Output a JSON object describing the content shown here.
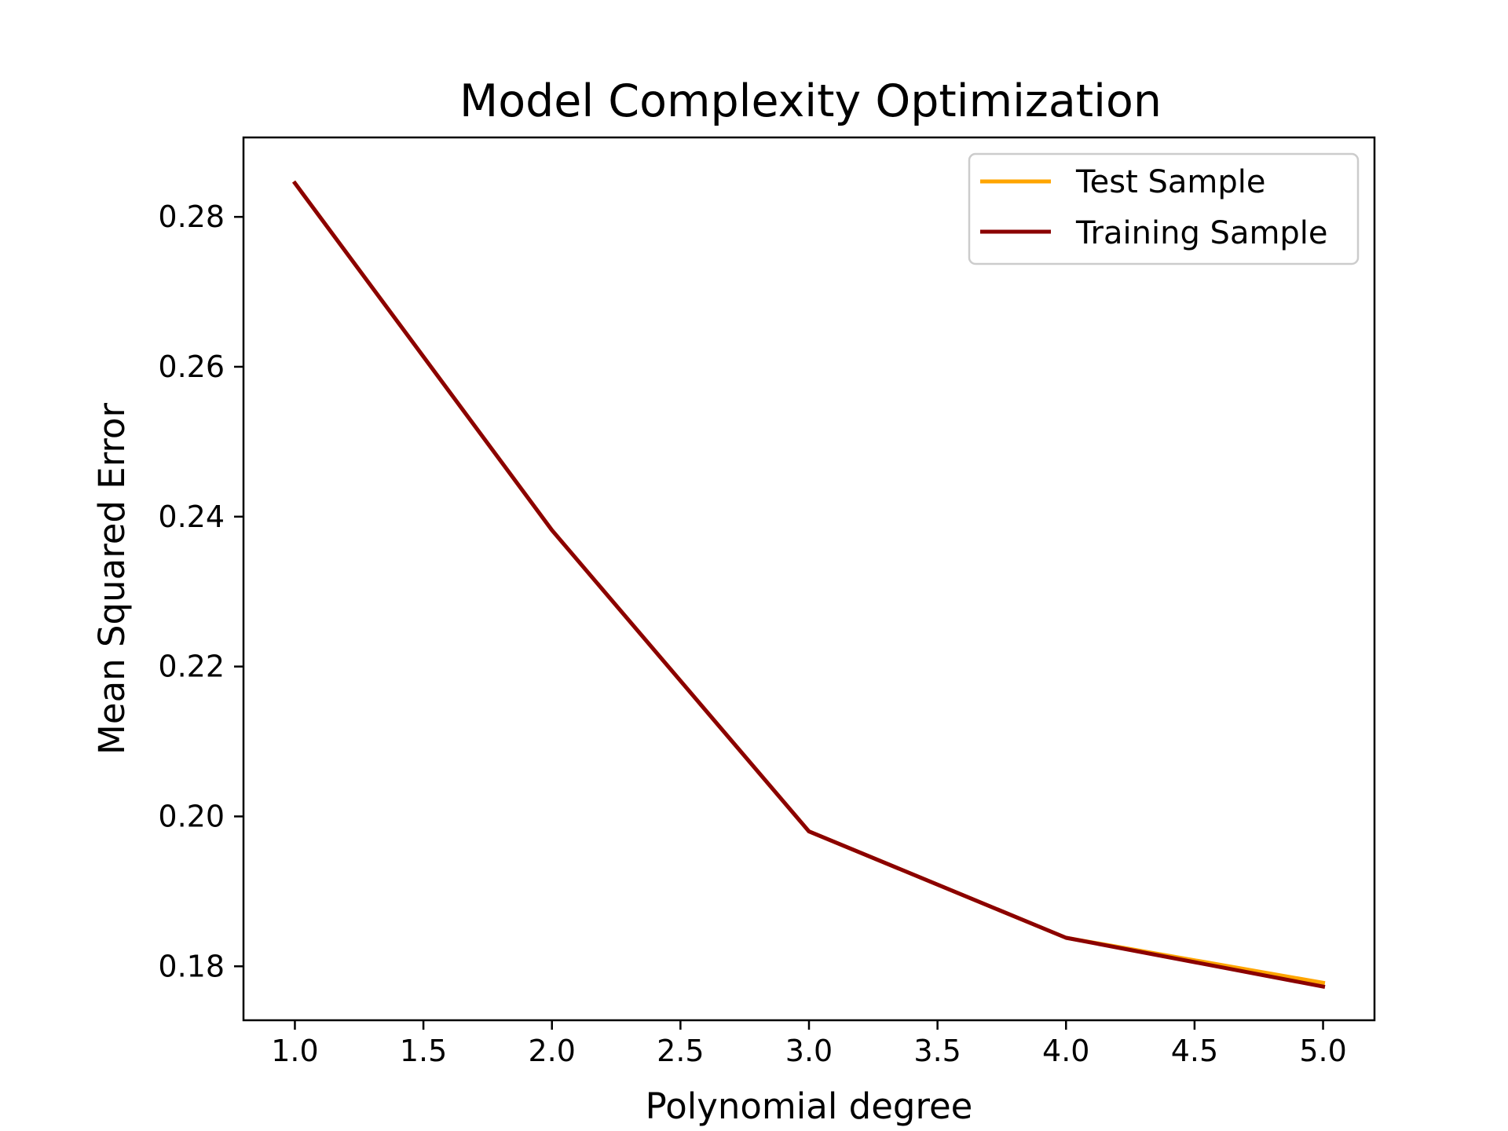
{
  "chart_data": {
    "type": "line",
    "title": "Model Complexity Optimization",
    "xlabel": "Polynomial degree",
    "ylabel": "Mean Squared Error",
    "x": [
      1,
      2,
      3,
      4,
      5
    ],
    "xlim": [
      0.8,
      5.2
    ],
    "ylim": [
      0.1728,
      0.2906
    ],
    "xticks": [
      1.0,
      1.5,
      2.0,
      2.5,
      3.0,
      3.5,
      4.0,
      4.5,
      5.0
    ],
    "xtick_labels": [
      "1.0",
      "1.5",
      "2.0",
      "2.5",
      "3.0",
      "3.5",
      "4.0",
      "4.5",
      "5.0"
    ],
    "yticks": [
      0.18,
      0.2,
      0.22,
      0.24,
      0.26,
      0.28
    ],
    "ytick_labels": [
      "0.18",
      "0.20",
      "0.22",
      "0.24",
      "0.26",
      "0.28"
    ],
    "grid": false,
    "legend_position": "top-right",
    "series": [
      {
        "name": "Test Sample",
        "color": "#ffa500",
        "values": [
          0.2845,
          0.2382,
          0.198,
          0.1838,
          0.1778
        ]
      },
      {
        "name": "Training Sample",
        "color": "#8b0000",
        "values": [
          0.2845,
          0.2382,
          0.198,
          0.1838,
          0.1773
        ]
      }
    ]
  }
}
